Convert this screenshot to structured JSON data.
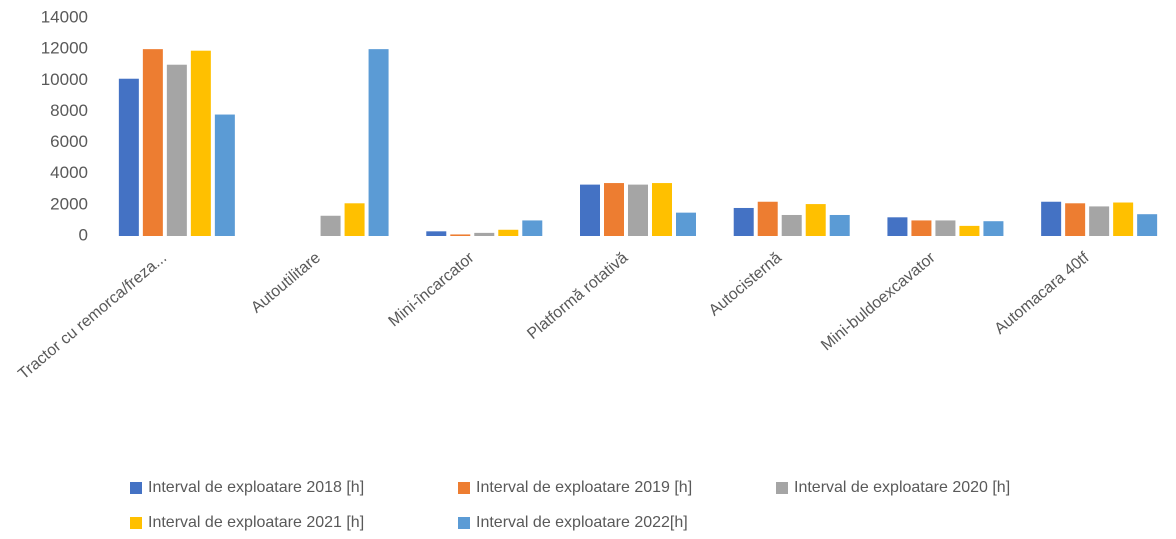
{
  "chart_data": {
    "type": "bar",
    "categories": [
      "Tractor cu remorca/freza...",
      "Autoutilitare",
      "Mini-încarcator",
      "Platformă rotativă",
      "Autocisternă",
      "Mini-buldoexcavator",
      "Automacara 40tf"
    ],
    "series": [
      {
        "name": "Interval de exploatare 2018 [h]",
        "color": "#4472c4",
        "values": [
          10100,
          0,
          300,
          3300,
          1800,
          1200,
          2200
        ]
      },
      {
        "name": "Interval de exploatare 2019 [h]",
        "color": "#ed7d31",
        "values": [
          12000,
          0,
          100,
          3400,
          2200,
          1000,
          2100
        ]
      },
      {
        "name": "Interval de exploatare 2020 [h]",
        "color": "#a5a5a5",
        "values": [
          11000,
          1300,
          200,
          3300,
          1350,
          1000,
          1900
        ]
      },
      {
        "name": "Interval de exploatare 2021 [h]",
        "color": "#ffc000",
        "values": [
          11900,
          2100,
          400,
          3400,
          2050,
          650,
          2150
        ]
      },
      {
        "name": "Interval de exploatare 2022[h]",
        "color": "#5b9bd5",
        "values": [
          7800,
          12000,
          1000,
          1500,
          1350,
          950,
          1400
        ]
      }
    ],
    "ylim": [
      0,
      14000
    ],
    "yticks": [
      0,
      2000,
      4000,
      6000,
      8000,
      10000,
      12000,
      14000
    ],
    "grid": false,
    "legend": "bottom"
  }
}
